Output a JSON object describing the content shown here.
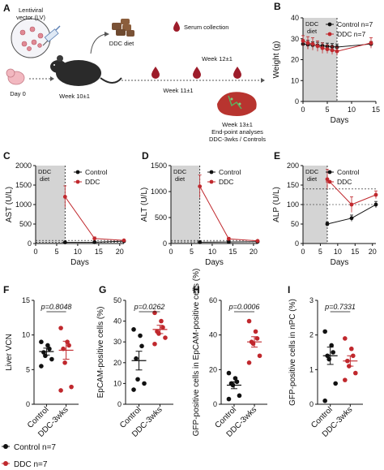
{
  "figure": {
    "panel_labels": {
      "A": "A",
      "B": "B",
      "C": "C",
      "D": "D",
      "E": "E",
      "F": "F",
      "G": "G",
      "H": "H",
      "I": "I"
    },
    "schematic": {
      "lv_label_line1": "Lentiviral",
      "lv_label_line2": "vector (LV)",
      "day0": "Day 0",
      "diet": "DDC diet",
      "serum": "Serum collection",
      "week10": "Week 10±1",
      "week11": "Week 11±1",
      "week12": "Week 12±1",
      "week13_line1": "Week 13±1",
      "week13_line2": "End-point analyses",
      "week13_line3": "DDC-3wks / Controls"
    },
    "shade_label_line1": "DDC",
    "shade_label_line2": "diet",
    "legend_control": "Control",
    "legend_ddc": "DDC",
    "bottom_legend": {
      "control": "Control n=7",
      "ddc": "DDC n=7"
    },
    "colors": {
      "control": "#111111",
      "ddc": "#c0282d",
      "shade": "#d4d4d4"
    }
  },
  "chart_data": [
    {
      "id": "B",
      "type": "line",
      "xlabel": "Days",
      "ylabel": "Weight (g)",
      "xlim": [
        0,
        15
      ],
      "ylim": [
        0,
        40
      ],
      "xticks": [
        "0",
        "5",
        "10",
        "15"
      ],
      "yticks": [
        "0",
        "10",
        "20",
        "30",
        "40"
      ],
      "shade": [
        0,
        7
      ],
      "legend": {
        "placement": "top-right",
        "entries": [
          "Control n=7",
          "DDC n=7"
        ]
      },
      "series": [
        {
          "name": "Control n=7",
          "x": [
            0,
            1,
            2,
            3,
            4,
            5,
            6,
            7,
            14
          ],
          "y": [
            27.5,
            27.2,
            27,
            26.8,
            26.6,
            26.4,
            26.2,
            26,
            27.5
          ],
          "err": [
            2,
            2,
            1.5,
            1.5,
            1.5,
            1.5,
            1.5,
            1.5,
            1.2
          ]
        },
        {
          "name": "DDC n=7",
          "x": [
            0,
            1,
            2,
            3,
            4,
            5,
            6,
            7,
            14
          ],
          "y": [
            29,
            28,
            27.5,
            26.5,
            25.5,
            25,
            24.5,
            24,
            28
          ],
          "err": [
            2.5,
            3,
            3,
            2.5,
            2.5,
            2,
            2,
            2,
            2.5
          ]
        }
      ]
    },
    {
      "id": "C",
      "type": "line",
      "xlabel": "Days",
      "ylabel": "AST (U/L)",
      "xlim": [
        0,
        21
      ],
      "ylim": [
        0,
        2000
      ],
      "xticks": [
        "0",
        "5",
        "10",
        "15",
        "20"
      ],
      "yticks": [
        "0",
        "500",
        "1000",
        "1500",
        "2000"
      ],
      "shade": [
        0,
        7
      ],
      "ref_lines": [
        30,
        80
      ],
      "legend": {
        "placement": "top-right",
        "entries": [
          "Control",
          "DDC"
        ]
      },
      "series": [
        {
          "name": "Control",
          "x": [
            7,
            14,
            21
          ],
          "y": [
            30,
            35,
            60
          ],
          "err": [
            5,
            5,
            10
          ]
        },
        {
          "name": "DDC",
          "x": [
            7,
            14,
            21
          ],
          "y": [
            1200,
            130,
            80
          ],
          "err": [
            280,
            40,
            15
          ]
        }
      ]
    },
    {
      "id": "D",
      "type": "line",
      "xlabel": "Days",
      "ylabel": "ALT (U/L)",
      "xlim": [
        0,
        21
      ],
      "ylim": [
        0,
        1500
      ],
      "xticks": [
        "0",
        "5",
        "10",
        "15",
        "20"
      ],
      "yticks": [
        "0",
        "500",
        "1000",
        "1500"
      ],
      "shade": [
        0,
        7
      ],
      "ref_lines": [
        30,
        60
      ],
      "legend": {
        "placement": "top-right",
        "entries": [
          "Control",
          "DDC"
        ]
      },
      "series": [
        {
          "name": "Control",
          "x": [
            7,
            14,
            21
          ],
          "y": [
            25,
            30,
            35
          ],
          "err": [
            5,
            5,
            5
          ]
        },
        {
          "name": "DDC",
          "x": [
            7,
            14,
            21
          ],
          "y": [
            1100,
            90,
            50
          ],
          "err": [
            220,
            30,
            15
          ]
        }
      ]
    },
    {
      "id": "E",
      "type": "line",
      "xlabel": "Days",
      "ylabel": "ALP (U/L)",
      "xlim": [
        0,
        21
      ],
      "ylim": [
        0,
        200
      ],
      "xticks": [
        "0",
        "5",
        "10",
        "15",
        "20"
      ],
      "yticks": [
        "0",
        "50",
        "100",
        "150",
        "200"
      ],
      "shade": [
        0,
        7
      ],
      "ref_lines": [
        100,
        140
      ],
      "legend": {
        "placement": "top-right",
        "entries": [
          "Control",
          "DDC"
        ]
      },
      "series": [
        {
          "name": "Control",
          "x": [
            7,
            14,
            21
          ],
          "y": [
            50,
            65,
            100
          ],
          "err": [
            5,
            8,
            8
          ]
        },
        {
          "name": "DDC",
          "x": [
            7,
            14,
            21
          ],
          "y": [
            165,
            100,
            125
          ],
          "err": [
            25,
            20,
            10
          ]
        }
      ]
    },
    {
      "id": "F",
      "type": "scatter",
      "ylabel": "Liver VCN",
      "categories": [
        "Control",
        "DDC-3wks"
      ],
      "ylim": [
        0,
        15
      ],
      "yticks": [
        "0",
        "5",
        "10",
        "15"
      ],
      "pvalue": "p=0.8048",
      "series": [
        {
          "name": "Control",
          "values": [
            9,
            8.5,
            8,
            7.5,
            7,
            6.5,
            5.5
          ],
          "mean": 7.6,
          "sem": 0.5
        },
        {
          "name": "DDC-3wks",
          "values": [
            11,
            9,
            8.5,
            8,
            6,
            2.5,
            2
          ],
          "mean": 7.8,
          "sem": 1.3
        }
      ]
    },
    {
      "id": "G",
      "type": "scatter",
      "ylabel": "EpCAM-positive cells (%)",
      "categories": [
        "Control",
        "DDC-3wks"
      ],
      "ylim": [
        0,
        50
      ],
      "yticks": [
        "0",
        "10",
        "20",
        "30",
        "40",
        "50"
      ],
      "pvalue": "p=0.0262",
      "series": [
        {
          "name": "Control",
          "values": [
            36,
            33,
            28,
            22,
            12,
            10,
            7
          ],
          "mean": 21,
          "sem": 4.5
        },
        {
          "name": "DDC-3wks",
          "values": [
            44,
            40,
            37,
            35,
            34,
            32,
            29
          ],
          "mean": 36,
          "sem": 2
        }
      ]
    },
    {
      "id": "H",
      "type": "scatter",
      "ylabel": "GFP-positive cells in EpCAM-positive cells (%)",
      "categories": [
        "Control",
        "DDC-3wks"
      ],
      "ylim": [
        0,
        60
      ],
      "yticks": [
        "0",
        "20",
        "40",
        "60"
      ],
      "pvalue": "p=0.0006",
      "series": [
        {
          "name": "Control",
          "values": [
            18,
            15,
            13,
            12,
            11,
            5,
            3
          ],
          "mean": 11,
          "sem": 2
        },
        {
          "name": "DDC-3wks",
          "values": [
            48,
            42,
            38,
            36,
            35,
            28,
            24
          ],
          "mean": 36,
          "sem": 3
        }
      ]
    },
    {
      "id": "I",
      "type": "scatter",
      "ylabel": "GFP-positive cells in nPC (%)",
      "categories": [
        "Control",
        "DDC-3wks"
      ],
      "ylim": [
        0,
        3
      ],
      "yticks": [
        "0",
        "1",
        "2",
        "3"
      ],
      "pvalue": "p=0.7331",
      "series": [
        {
          "name": "Control",
          "values": [
            2.1,
            1.7,
            1.5,
            1.4,
            1.3,
            0.6,
            0.1
          ],
          "mean": 1.4,
          "sem": 0.25
        },
        {
          "name": "DDC-3wks",
          "values": [
            1.9,
            1.6,
            1.4,
            1.25,
            1.1,
            0.9,
            0.7
          ],
          "mean": 1.25,
          "sem": 0.15
        }
      ]
    }
  ]
}
